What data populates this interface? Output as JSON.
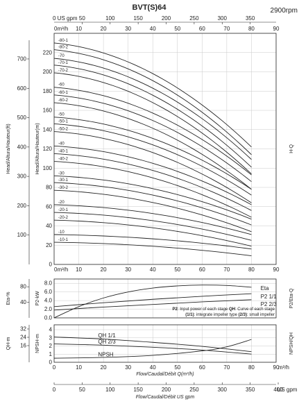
{
  "title": "BVT(S)64",
  "speed": "2900rpm",
  "chart_data": [
    {
      "name": "hq",
      "type": "line",
      "side_label": "H-Q",
      "ylabel_left": "Head/Altura/Hauteur(ft)",
      "ylabel_right": "Head/Altura/Hauteur(m)",
      "x_unit": "0m³/h",
      "x_ticks": [
        "10",
        "20",
        "30",
        "40",
        "50",
        "60",
        "70",
        "80",
        "90"
      ],
      "x_unit_top": "0 US gpm",
      "x_top_ticks": [
        "50",
        "100",
        "150",
        "200",
        "250",
        "300",
        "350"
      ],
      "ylim_m": [
        0,
        240
      ],
      "y_ticks_m": [
        "20",
        "40",
        "60",
        "80",
        "100",
        "120",
        "140",
        "160",
        "180",
        "200",
        "220"
      ],
      "y_ticks_ft": [
        "100",
        "200",
        "300",
        "400",
        "500",
        "600",
        "700"
      ],
      "xlim": [
        0,
        90
      ],
      "flow_range": [
        0,
        80
      ],
      "series": [
        {
          "name": "-80-1",
          "h0": 230,
          "h80": 122
        },
        {
          "name": "-80-2",
          "h0": 223,
          "h80": 114
        },
        {
          "name": "-70",
          "h0": 214,
          "h80": 109
        },
        {
          "name": "-70-1",
          "h0": 207,
          "h80": 101
        },
        {
          "name": "-70-2",
          "h0": 199,
          "h80": 94
        },
        {
          "name": "-60",
          "h0": 184,
          "h80": 93
        },
        {
          "name": "-60-1",
          "h0": 176,
          "h80": 86
        },
        {
          "name": "-60-2",
          "h0": 168,
          "h80": 78
        },
        {
          "name": "-50",
          "h0": 153,
          "h80": 78
        },
        {
          "name": "-50-1",
          "h0": 146,
          "h80": 72
        },
        {
          "name": "-50-2",
          "h0": 138,
          "h80": 64
        },
        {
          "name": "-40",
          "h0": 123,
          "h80": 62
        },
        {
          "name": "-40-1",
          "h0": 115,
          "h80": 56
        },
        {
          "name": "-40-2",
          "h0": 107,
          "h80": 49
        },
        {
          "name": "-30",
          "h0": 92,
          "h80": 47
        },
        {
          "name": "-30-1",
          "h0": 85,
          "h80": 41
        },
        {
          "name": "-30-2",
          "h0": 77,
          "h80": 34
        },
        {
          "name": "-20",
          "h0": 62,
          "h80": 31
        },
        {
          "name": "-20-1",
          "h0": 54,
          "h80": 25
        },
        {
          "name": "-20-2",
          "h0": 46,
          "h80": 19
        },
        {
          "name": "-10",
          "h0": 31,
          "h80": 16
        },
        {
          "name": "-10-1",
          "h0": 23,
          "h80": 9
        }
      ]
    },
    {
      "name": "power",
      "type": "line",
      "side_label": "P2/Eta-Q",
      "ylabel_left": "Eta-%",
      "ylabel_right": "P2-kW",
      "y_ticks_left": [
        "40",
        "80"
      ],
      "y_ticks_right": [
        "0.0",
        "2.0",
        "4.0",
        "6.0",
        "8.0"
      ],
      "ylim": [
        0,
        9
      ],
      "series": [
        {
          "name": "Eta",
          "x": [
            0,
            10,
            20,
            30,
            40,
            50,
            60,
            70,
            80
          ],
          "y": [
            0,
            2.6,
            4.6,
            6.0,
            6.9,
            7.4,
            7.6,
            7.5,
            7.1
          ]
        },
        {
          "name": "P2 1/1",
          "x": [
            0,
            20,
            40,
            60,
            80
          ],
          "y": [
            2.6,
            3.5,
            4.3,
            5.0,
            5.6
          ]
        },
        {
          "name": "P2 2/3",
          "x": [
            0,
            20,
            40,
            60,
            80
          ],
          "y": [
            1.8,
            2.5,
            3.1,
            3.7,
            4.2
          ]
        }
      ],
      "note_lines": [
        [
          {
            "b": "P2"
          },
          {
            "t": ": Input power of each stage "
          },
          {
            "b": "QH"
          },
          {
            "t": ": Curve of each stage"
          }
        ],
        [
          {
            "b": "(1/1)"
          },
          {
            "t": ": integrate impeller type "
          },
          {
            "b": "(2/3)"
          },
          {
            "t": ": small impeller"
          }
        ]
      ]
    },
    {
      "name": "npsh",
      "type": "line",
      "side_label": "NPSH/QH",
      "ylabel_left": "QH-m",
      "ylabel_right": "NPSH-m",
      "y_ticks_left": [
        "16",
        "24",
        "32"
      ],
      "y_ticks_right": [
        "0",
        "1",
        "2",
        "3",
        "4"
      ],
      "ylim": [
        0,
        4.6
      ],
      "series": [
        {
          "name": "QH 1/1",
          "x": [
            0,
            20,
            40,
            60,
            80
          ],
          "y": [
            3.1,
            2.85,
            2.45,
            1.95,
            1.3
          ]
        },
        {
          "name": "QH 2/3",
          "x": [
            0,
            20,
            40,
            60,
            80
          ],
          "y": [
            2.25,
            2.1,
            1.85,
            1.5,
            1.0
          ]
        },
        {
          "name": "NPSH",
          "x": [
            0,
            20,
            40,
            60,
            70,
            80
          ],
          "y": [
            0.5,
            0.6,
            0.85,
            1.4,
            1.9,
            2.8
          ]
        }
      ],
      "x_ticks": [
        "0",
        "10",
        "20",
        "30",
        "40",
        "50",
        "60",
        "70",
        "80",
        "90"
      ],
      "x_unit": "m³/h",
      "xlabel": "Flow/Caudal/Débit Q(m³/h)",
      "x_bottom_ticks": [
        "0",
        "50",
        "100",
        "150",
        "200",
        "250",
        "300",
        "350",
        "400"
      ],
      "x_bottom_unit": "US gpm",
      "xlabel_bottom": "Flow/Caudal/Débit  US gpm"
    }
  ]
}
